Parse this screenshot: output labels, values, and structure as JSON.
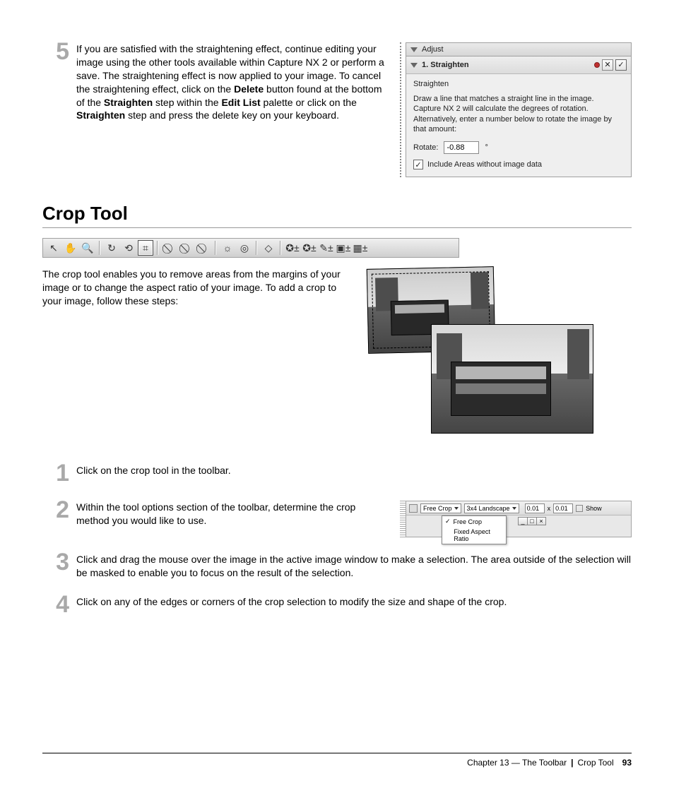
{
  "step5": {
    "num": "5",
    "text_parts": [
      "If you are satisfied with the straightening effect, continue editing your image using the other tools available within Capture NX 2 or perform a save. The straightening effect is now applied to your image. To cancel the straightening effect, click on the ",
      "Delete",
      " button found at the bottom of the ",
      "Straighten",
      " step within the ",
      "Edit List",
      " palette or click on the ",
      "Straighten",
      " step and press the delete key on your keyboard."
    ]
  },
  "panel": {
    "adjust": "Adjust",
    "step_title": "1. Straighten",
    "confirm": "✓",
    "cancel": "✕",
    "label": "Straighten",
    "desc": "Draw a line that matches a straight line in the image.\nCapture NX 2 will calculate the degrees of rotation. Alternatively, enter a number below to rotate the image by that amount:",
    "rotate_label": "Rotate:",
    "rotate_value": "-0.88",
    "deg": "°",
    "include": "Include Areas without image data",
    "include_checked": true
  },
  "section": {
    "title": "Crop Tool"
  },
  "toolbar_icons": [
    "↖",
    "✋",
    "🔍",
    "|",
    "↻",
    "⟲",
    "⌗",
    "|",
    "⃠",
    "⃠",
    "⃠",
    "|",
    "☼",
    "◎",
    "|",
    "◇",
    "|",
    "✪±",
    "✪±",
    "✎±",
    "▣±",
    "▦±"
  ],
  "selected_toolbar_index": 6,
  "intro": "The crop tool enables you to remove areas from the margins of your image or to change the aspect ratio of your image. To add a crop to your image, follow these steps:",
  "steps": [
    {
      "n": "1",
      "t": "Click on the crop tool in the toolbar."
    },
    {
      "n": "2",
      "t": "Within the tool options section of the toolbar, determine the crop method you would like to use."
    },
    {
      "n": "3",
      "t": "Click and drag the mouse over the image in the active image window to make a selection. The area outside of the selection will be masked to enable you to focus on the result of the selection."
    },
    {
      "n": "4",
      "t": "Click on any of the edges or corners of the crop selection to modify the size and shape of the crop."
    }
  ],
  "optbar": {
    "free": "Free Crop",
    "aspect": "3x4 Landscape",
    "v1": "0.01",
    "x": "x",
    "v2": "0.01",
    "show": "Show",
    "menu_free": "Free Crop",
    "menu_fixed": "Fixed Aspect Ratio"
  },
  "footer": {
    "chapter": "Chapter 13 — The Toolbar",
    "section": "Crop Tool",
    "page": "93"
  }
}
